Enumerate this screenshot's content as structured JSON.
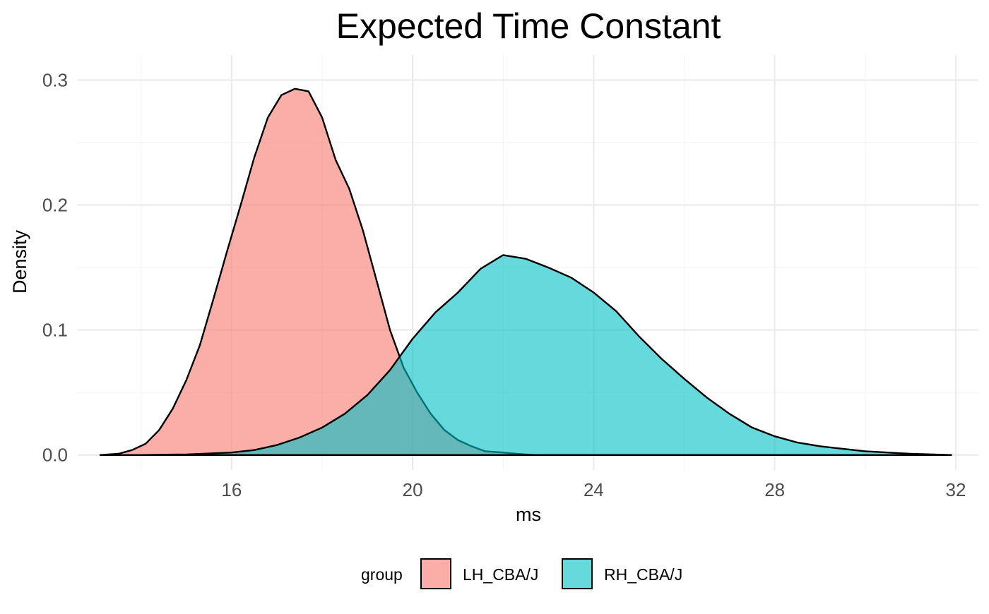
{
  "chart_data": {
    "type": "area",
    "subtype": "density",
    "title": "Expected Time Constant",
    "xlabel": "ms",
    "ylabel": "Density",
    "xlim": [
      12.6,
      32.5
    ],
    "ylim": [
      -0.012,
      0.32
    ],
    "x_ticks": [
      16,
      20,
      24,
      28,
      32
    ],
    "x_tick_labels": [
      "16",
      "20",
      "24",
      "28",
      "32"
    ],
    "y_ticks": [
      0.0,
      0.1,
      0.2,
      0.3
    ],
    "y_tick_labels": [
      "0.0",
      "0.1",
      "0.2",
      "0.3"
    ],
    "grid": true,
    "legend": {
      "title": "group",
      "position": "bottom"
    },
    "series": [
      {
        "name": "LH_CBA/J",
        "color": "#F8766D",
        "fill_opacity": 0.6,
        "points": [
          [
            13.1,
            0.0
          ],
          [
            13.5,
            0.001
          ],
          [
            13.8,
            0.004
          ],
          [
            14.1,
            0.009
          ],
          [
            14.4,
            0.02
          ],
          [
            14.7,
            0.037
          ],
          [
            15.0,
            0.06
          ],
          [
            15.3,
            0.088
          ],
          [
            15.6,
            0.125
          ],
          [
            15.9,
            0.163
          ],
          [
            16.2,
            0.2
          ],
          [
            16.5,
            0.238
          ],
          [
            16.8,
            0.27
          ],
          [
            17.1,
            0.288
          ],
          [
            17.4,
            0.293
          ],
          [
            17.7,
            0.291
          ],
          [
            18.0,
            0.27
          ],
          [
            18.3,
            0.236
          ],
          [
            18.6,
            0.213
          ],
          [
            18.9,
            0.18
          ],
          [
            19.2,
            0.14
          ],
          [
            19.5,
            0.1
          ],
          [
            19.8,
            0.07
          ],
          [
            20.1,
            0.05
          ],
          [
            20.4,
            0.033
          ],
          [
            20.7,
            0.02
          ],
          [
            21.0,
            0.012
          ],
          [
            21.3,
            0.007
          ],
          [
            21.6,
            0.003
          ],
          [
            22.0,
            0.002
          ],
          [
            22.3,
            0.001
          ],
          [
            22.7,
            0.0
          ],
          [
            31.9,
            0.0
          ]
        ]
      },
      {
        "name": "RH_CBA/J",
        "color": "#00BFC4",
        "fill_opacity": 0.6,
        "points": [
          [
            13.1,
            0.0
          ],
          [
            14.0,
            0.0
          ],
          [
            15.0,
            0.0005
          ],
          [
            16.0,
            0.002
          ],
          [
            16.5,
            0.004
          ],
          [
            17.0,
            0.008
          ],
          [
            17.5,
            0.014
          ],
          [
            18.0,
            0.022
          ],
          [
            18.5,
            0.033
          ],
          [
            19.0,
            0.048
          ],
          [
            19.5,
            0.068
          ],
          [
            20.0,
            0.093
          ],
          [
            20.5,
            0.114
          ],
          [
            21.0,
            0.13
          ],
          [
            21.5,
            0.149
          ],
          [
            22.0,
            0.16
          ],
          [
            22.5,
            0.157
          ],
          [
            23.0,
            0.15
          ],
          [
            23.5,
            0.142
          ],
          [
            24.0,
            0.13
          ],
          [
            24.5,
            0.115
          ],
          [
            25.0,
            0.095
          ],
          [
            25.5,
            0.077
          ],
          [
            26.0,
            0.061
          ],
          [
            26.5,
            0.046
          ],
          [
            27.0,
            0.033
          ],
          [
            27.5,
            0.022
          ],
          [
            28.0,
            0.015
          ],
          [
            28.5,
            0.01
          ],
          [
            29.0,
            0.007
          ],
          [
            29.5,
            0.005
          ],
          [
            30.0,
            0.003
          ],
          [
            30.5,
            0.002
          ],
          [
            31.0,
            0.001
          ],
          [
            31.9,
            0.0
          ]
        ]
      }
    ]
  }
}
